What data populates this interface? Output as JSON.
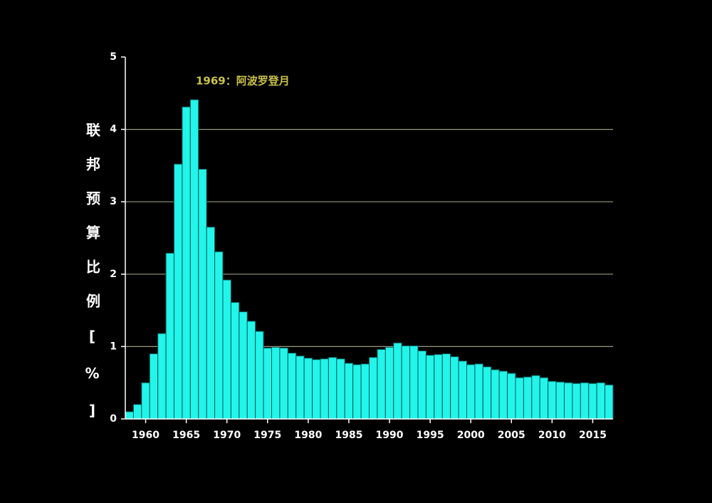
{
  "chart_data": {
    "type": "bar",
    "y_label": "联邦预算比例[%]",
    "annotation": "1969：阿波罗登月",
    "color": "#22f5ea",
    "x": [
      1958,
      1959,
      1960,
      1961,
      1962,
      1963,
      1964,
      1965,
      1966,
      1967,
      1968,
      1969,
      1970,
      1971,
      1972,
      1973,
      1974,
      1975,
      1976,
      1977,
      1978,
      1979,
      1980,
      1981,
      1982,
      1983,
      1984,
      1985,
      1986,
      1987,
      1988,
      1989,
      1990,
      1991,
      1992,
      1993,
      1994,
      1995,
      1996,
      1997,
      1998,
      1999,
      2000,
      2001,
      2002,
      2003,
      2004,
      2005,
      2006,
      2007,
      2008,
      2009,
      2010,
      2011,
      2012,
      2013,
      2014,
      2015,
      2016,
      2017
    ],
    "values": [
      0.1,
      0.2,
      0.5,
      0.9,
      1.18,
      2.29,
      3.52,
      4.31,
      4.41,
      3.45,
      2.65,
      2.31,
      1.92,
      1.61,
      1.48,
      1.35,
      1.21,
      0.98,
      0.99,
      0.98,
      0.91,
      0.87,
      0.84,
      0.82,
      0.83,
      0.85,
      0.83,
      0.77,
      0.75,
      0.76,
      0.85,
      0.96,
      0.99,
      1.05,
      1.01,
      1.01,
      0.94,
      0.88,
      0.89,
      0.9,
      0.86,
      0.8,
      0.75,
      0.76,
      0.72,
      0.68,
      0.66,
      0.63,
      0.57,
      0.58,
      0.6,
      0.57,
      0.52,
      0.51,
      0.5,
      0.49,
      0.5,
      0.49,
      0.5,
      0.47
    ],
    "xlim": [
      1957.5,
      2017.5
    ],
    "xticks": [
      1960,
      1965,
      1970,
      1975,
      1980,
      1985,
      1990,
      1995,
      2000,
      2005,
      2010,
      2015
    ],
    "ylim": [
      0,
      5
    ],
    "yticks": [
      0,
      1,
      2,
      3,
      4,
      5
    ],
    "grid": true
  }
}
